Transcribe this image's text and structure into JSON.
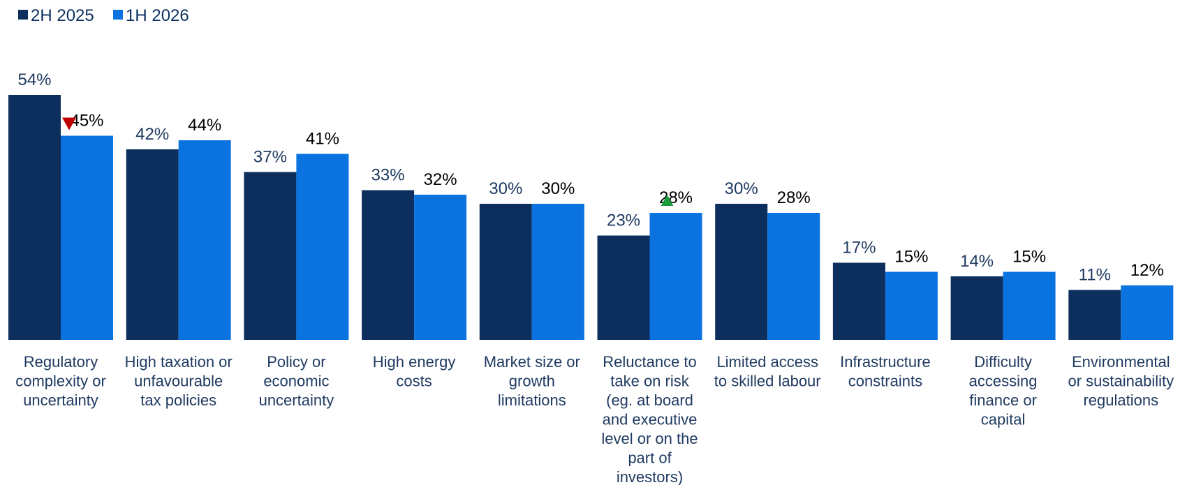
{
  "chart_data": {
    "type": "bar",
    "title": "",
    "xlabel": "",
    "ylabel": "",
    "ylim": [
      0,
      60
    ],
    "grid": false,
    "legend_position": "top-left",
    "categories": [
      "Regulatory complexity or uncertainty",
      "High taxation or unfavourable tax policies",
      "Policy or economic uncertainty",
      "High energy costs",
      "Market size or growth limitations",
      "Reluctance to take on risk (eg. at board and executive level or on the part of investors)",
      "Limited access to skilled labour",
      "Infrastructure constraints",
      "Difficulty accessing finance or capital",
      "Environmental or sustainability regulations"
    ],
    "category_lines": [
      [
        "Regulatory",
        "complexity or",
        "uncertainty"
      ],
      [
        "High taxation or",
        "unfavourable",
        "tax policies"
      ],
      [
        "Policy or",
        "economic",
        "uncertainty"
      ],
      [
        "High energy",
        "costs"
      ],
      [
        "Market size or",
        "growth",
        "limitations"
      ],
      [
        "Reluctance to",
        "take on risk",
        "(eg. at board",
        "and executive",
        "level or on the",
        "part of",
        "investors)"
      ],
      [
        "Limited access",
        "to skilled labour"
      ],
      [
        "Infrastructure",
        "constraints"
      ],
      [
        "Difficulty",
        "accessing",
        "finance or",
        "capital"
      ],
      [
        "Environmental",
        "or sustainability",
        "regulations"
      ]
    ],
    "series": [
      {
        "name": "2H 2025",
        "color": "#0d2f5e",
        "label_color": "#1f3a60",
        "values": [
          54,
          42,
          37,
          33,
          30,
          23,
          30,
          17,
          14,
          11
        ],
        "labels": [
          "54%",
          "42%",
          "37%",
          "33%",
          "30%",
          "23%",
          "30%",
          "17%",
          "14%",
          "11%"
        ]
      },
      {
        "name": "1H 2026",
        "color": "#0a73e0",
        "label_color": "#000000",
        "values": [
          45,
          44,
          41,
          32,
          30,
          28,
          28,
          15,
          15,
          12
        ],
        "labels": [
          "45%",
          "44%",
          "41%",
          "32%",
          "30%",
          "28%",
          "28%",
          "15%",
          "15%",
          "12%"
        ]
      }
    ],
    "annotations": [
      {
        "type": "down-arrow-icon",
        "category_index": 0,
        "series_index": 1,
        "color": "#c00000"
      },
      {
        "type": "up-arrow-icon",
        "category_index": 5,
        "series_index": 1,
        "color": "#1a9e3c"
      }
    ]
  }
}
